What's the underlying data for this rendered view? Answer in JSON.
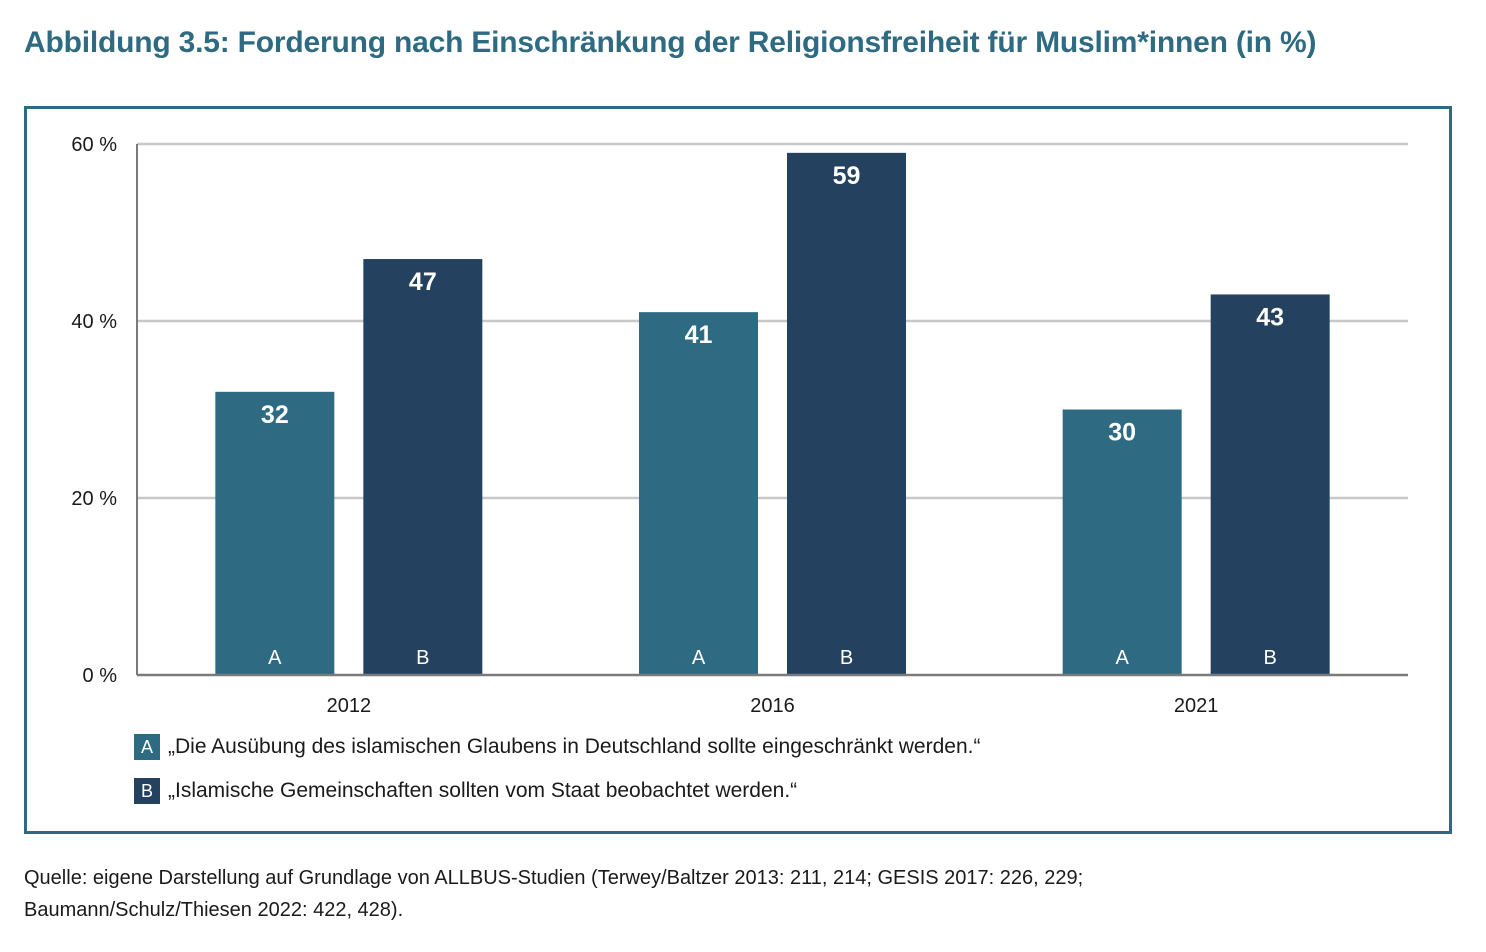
{
  "title": "Abbildung 3.5: Forderung nach Einschränkung der Religionsfreiheit für Muslim*innen (in %)",
  "source_line1": "Quelle: eigene Darstellung auf Grundlage von ALLBUS-Studien (Terwey/Baltzer 2013: 211, 214; GESIS 2017: 226, 229;",
  "source_line2": "Baumann/Schulz/Thiesen 2022: 422, 428).",
  "legend": [
    {
      "key": "A",
      "text": "„Die Ausübung des islamischen Glaubens in Deutschland sollte eingeschränkt werden.“",
      "color": "#2e6b82"
    },
    {
      "key": "B",
      "text": "„Islamische Gemeinschaften sollten vom Staat beobachtet werden.“",
      "color": "#24425f"
    }
  ],
  "chart_data": {
    "type": "bar",
    "categories": [
      "2012",
      "2016",
      "2021"
    ],
    "series": [
      {
        "name": "A",
        "values": [
          32,
          41,
          30
        ],
        "color": "#2e6b82"
      },
      {
        "name": "B",
        "values": [
          47,
          59,
          43
        ],
        "color": "#24425f"
      }
    ],
    "ylim": [
      0,
      60
    ],
    "yticks": [
      {
        "value": 0,
        "label": "0 %"
      },
      {
        "value": 20,
        "label": "20 %"
      },
      {
        "value": 40,
        "label": "40 %"
      },
      {
        "value": 60,
        "label": "60 %"
      }
    ],
    "grid": true,
    "gridColor": "#c8c8c8",
    "axisColor": "#7a7a7a"
  }
}
